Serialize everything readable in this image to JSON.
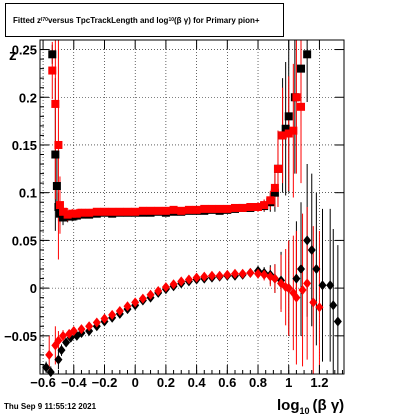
{
  "chart_data": {
    "type": "scatter",
    "title_parts": {
      "a": "Fitted  z",
      "a_sub": "I70",
      "b": " versus TpcTrackLength and log",
      "b_sub": "10",
      "c": "(β  γ) for Primary pion+"
    },
    "ylabel": "z",
    "xlabel_parts": {
      "base": "log",
      "sub": "10",
      "rest": "(β γ)"
    },
    "xlim": [
      -0.62,
      1.36
    ],
    "ylim": [
      -0.09,
      0.26
    ],
    "x_ticks": [
      -0.6,
      -0.4,
      -0.2,
      0,
      0.2,
      0.4,
      0.6,
      0.8,
      1,
      1.2
    ],
    "x_tick_labels": [
      "−0.6",
      "−0.4",
      "−0.2",
      "0",
      "0.2",
      "0.4",
      "0.6",
      "0.8",
      "1",
      "1.2"
    ],
    "y_ticks": [
      -0.05,
      0,
      0.05,
      0.1,
      0.15,
      0.2,
      0.25
    ],
    "y_tick_labels": [
      "−0.05",
      "0",
      "0.05",
      "0.1",
      "0.15",
      "0.2",
      "0.25"
    ],
    "grid": true,
    "timestamp": "Thu Sep  9 11:55:12 2021",
    "series": [
      {
        "marker": "square",
        "color": "#000000",
        "points": [
          [
            -0.54,
            0.245,
            0.01
          ],
          [
            -0.52,
            0.14,
            0.08
          ],
          [
            -0.51,
            0.107,
            0.03
          ],
          [
            -0.5,
            0.085,
            0.015
          ],
          [
            -0.49,
            0.078,
            0.01
          ],
          [
            -0.47,
            0.074,
            0.008
          ],
          [
            -0.44,
            0.075,
            0.006
          ],
          [
            -0.41,
            0.075,
            0.005
          ],
          [
            -0.38,
            0.076,
            0.005
          ],
          [
            -0.35,
            0.077,
            0.004
          ],
          [
            -0.3,
            0.077,
            0.004
          ],
          [
            -0.25,
            0.078,
            0.003
          ],
          [
            -0.2,
            0.079,
            0.003
          ],
          [
            -0.15,
            0.078,
            0.003
          ],
          [
            -0.1,
            0.079,
            0.003
          ],
          [
            -0.05,
            0.079,
            0.003
          ],
          [
            0.0,
            0.079,
            0.003
          ],
          [
            0.05,
            0.079,
            0.003
          ],
          [
            0.1,
            0.079,
            0.003
          ],
          [
            0.15,
            0.08,
            0.003
          ],
          [
            0.2,
            0.079,
            0.003
          ],
          [
            0.25,
            0.08,
            0.003
          ],
          [
            0.3,
            0.08,
            0.003
          ],
          [
            0.35,
            0.081,
            0.003
          ],
          [
            0.4,
            0.081,
            0.003
          ],
          [
            0.45,
            0.081,
            0.003
          ],
          [
            0.5,
            0.082,
            0.003
          ],
          [
            0.55,
            0.081,
            0.003
          ],
          [
            0.6,
            0.082,
            0.003
          ],
          [
            0.65,
            0.083,
            0.003
          ],
          [
            0.7,
            0.084,
            0.004
          ],
          [
            0.75,
            0.084,
            0.004
          ],
          [
            0.8,
            0.085,
            0.005
          ],
          [
            0.84,
            0.086,
            0.006
          ],
          [
            0.88,
            0.09,
            0.01
          ],
          [
            0.91,
            0.1,
            0.02
          ],
          [
            0.93,
            0.125,
            0.04
          ],
          [
            0.96,
            0.16,
            0.06
          ],
          [
            0.98,
            0.167,
            0.07
          ],
          [
            1.0,
            0.18,
            0.08
          ],
          [
            1.04,
            0.2,
            0.08
          ],
          [
            1.08,
            0.23,
            0.06
          ],
          [
            1.12,
            0.245,
            0.05
          ]
        ]
      },
      {
        "marker": "square",
        "color": "#ff0000",
        "points": [
          [
            -0.54,
            0.228,
            0.03
          ],
          [
            -0.52,
            0.193,
            0.1
          ],
          [
            -0.5,
            0.15,
            0.12
          ],
          [
            -0.49,
            0.087,
            0.03
          ],
          [
            -0.47,
            0.08,
            0.01
          ],
          [
            -0.44,
            0.077,
            0.007
          ],
          [
            -0.41,
            0.078,
            0.005
          ],
          [
            -0.38,
            0.078,
            0.005
          ],
          [
            -0.35,
            0.079,
            0.004
          ],
          [
            -0.3,
            0.079,
            0.004
          ],
          [
            -0.25,
            0.08,
            0.003
          ],
          [
            -0.2,
            0.08,
            0.003
          ],
          [
            -0.15,
            0.08,
            0.003
          ],
          [
            -0.1,
            0.08,
            0.003
          ],
          [
            -0.05,
            0.08,
            0.003
          ],
          [
            0.0,
            0.08,
            0.003
          ],
          [
            0.05,
            0.081,
            0.003
          ],
          [
            0.1,
            0.081,
            0.003
          ],
          [
            0.15,
            0.081,
            0.003
          ],
          [
            0.2,
            0.081,
            0.003
          ],
          [
            0.25,
            0.082,
            0.003
          ],
          [
            0.3,
            0.081,
            0.003
          ],
          [
            0.35,
            0.082,
            0.003
          ],
          [
            0.4,
            0.082,
            0.003
          ],
          [
            0.45,
            0.083,
            0.003
          ],
          [
            0.5,
            0.083,
            0.003
          ],
          [
            0.55,
            0.083,
            0.003
          ],
          [
            0.6,
            0.083,
            0.003
          ],
          [
            0.65,
            0.084,
            0.004
          ],
          [
            0.7,
            0.084,
            0.004
          ],
          [
            0.75,
            0.085,
            0.004
          ],
          [
            0.8,
            0.085,
            0.005
          ],
          [
            0.84,
            0.087,
            0.006
          ],
          [
            0.88,
            0.092,
            0.01
          ],
          [
            0.91,
            0.105,
            0.02
          ],
          [
            0.93,
            0.125,
            0.04
          ],
          [
            0.96,
            0.16,
            0.05
          ],
          [
            1.0,
            0.162,
            0.06
          ],
          [
            1.03,
            0.165,
            0.07
          ],
          [
            1.05,
            0.2,
            0.08
          ],
          [
            1.08,
            0.19,
            0.08
          ]
        ]
      },
      {
        "marker": "diamond",
        "color": "#000000",
        "points": [
          [
            -0.58,
            -0.083,
            0.006
          ],
          [
            -0.55,
            -0.088,
            0.006
          ],
          [
            -0.5,
            -0.075,
            0.01
          ],
          [
            -0.48,
            -0.065,
            0.006
          ],
          [
            -0.45,
            -0.057,
            0.004
          ],
          [
            -0.42,
            -0.052,
            0.004
          ],
          [
            -0.38,
            -0.05,
            0.003
          ],
          [
            -0.35,
            -0.047,
            0.003
          ],
          [
            -0.3,
            -0.045,
            0.003
          ],
          [
            -0.25,
            -0.04,
            0.003
          ],
          [
            -0.2,
            -0.035,
            0.003
          ],
          [
            -0.15,
            -0.031,
            0.003
          ],
          [
            -0.1,
            -0.027,
            0.003
          ],
          [
            -0.05,
            -0.022,
            0.003
          ],
          [
            0.0,
            -0.018,
            0.003
          ],
          [
            0.05,
            -0.013,
            0.003
          ],
          [
            0.1,
            -0.01,
            0.003
          ],
          [
            0.15,
            -0.005,
            0.003
          ],
          [
            0.2,
            -0.001,
            0.003
          ],
          [
            0.25,
            0.002,
            0.003
          ],
          [
            0.3,
            0.005,
            0.003
          ],
          [
            0.35,
            0.007,
            0.003
          ],
          [
            0.4,
            0.009,
            0.003
          ],
          [
            0.45,
            0.01,
            0.003
          ],
          [
            0.5,
            0.011,
            0.003
          ],
          [
            0.55,
            0.012,
            0.003
          ],
          [
            0.6,
            0.013,
            0.003
          ],
          [
            0.65,
            0.013,
            0.003
          ],
          [
            0.7,
            0.014,
            0.004
          ],
          [
            0.75,
            0.016,
            0.004
          ],
          [
            0.8,
            0.018,
            0.005
          ],
          [
            0.84,
            0.016,
            0.006
          ],
          [
            0.88,
            0.014,
            0.01
          ],
          [
            0.91,
            0.01,
            0.015
          ],
          [
            0.95,
            0.008,
            0.03
          ],
          [
            1.0,
            0.0,
            0.05
          ],
          [
            1.05,
            0.01,
            0.06
          ],
          [
            1.08,
            0.02,
            0.07
          ],
          [
            1.12,
            0.05,
            0.08
          ],
          [
            1.15,
            0.04,
            0.08
          ],
          [
            1.18,
            0.02,
            0.08
          ],
          [
            1.22,
            0.003,
            0.08
          ],
          [
            1.27,
            0.003,
            0.08
          ],
          [
            1.29,
            -0.018,
            0.08
          ],
          [
            1.32,
            -0.035,
            0.08
          ]
        ]
      },
      {
        "marker": "diamond",
        "color": "#ff0000",
        "points": [
          [
            -0.56,
            -0.07,
            0.02
          ],
          [
            -0.52,
            -0.06,
            0.02
          ],
          [
            -0.5,
            -0.055,
            0.01
          ],
          [
            -0.47,
            -0.05,
            0.006
          ],
          [
            -0.43,
            -0.048,
            0.004
          ],
          [
            -0.4,
            -0.045,
            0.004
          ],
          [
            -0.35,
            -0.043,
            0.003
          ],
          [
            -0.3,
            -0.04,
            0.003
          ],
          [
            -0.25,
            -0.036,
            0.003
          ],
          [
            -0.2,
            -0.032,
            0.003
          ],
          [
            -0.15,
            -0.028,
            0.003
          ],
          [
            -0.1,
            -0.024,
            0.003
          ],
          [
            -0.05,
            -0.019,
            0.003
          ],
          [
            0.0,
            -0.015,
            0.003
          ],
          [
            0.05,
            -0.011,
            0.003
          ],
          [
            0.1,
            -0.007,
            0.003
          ],
          [
            0.15,
            -0.003,
            0.003
          ],
          [
            0.2,
            0.001,
            0.003
          ],
          [
            0.25,
            0.004,
            0.003
          ],
          [
            0.3,
            0.007,
            0.003
          ],
          [
            0.35,
            0.009,
            0.003
          ],
          [
            0.4,
            0.011,
            0.003
          ],
          [
            0.45,
            0.012,
            0.003
          ],
          [
            0.5,
            0.013,
            0.003
          ],
          [
            0.55,
            0.013,
            0.003
          ],
          [
            0.6,
            0.014,
            0.003
          ],
          [
            0.65,
            0.015,
            0.004
          ],
          [
            0.7,
            0.015,
            0.004
          ],
          [
            0.75,
            0.016,
            0.004
          ],
          [
            0.8,
            0.015,
            0.005
          ],
          [
            0.84,
            0.014,
            0.006
          ],
          [
            0.88,
            0.012,
            0.01
          ],
          [
            0.91,
            0.01,
            0.015
          ],
          [
            0.95,
            0.005,
            0.03
          ],
          [
            0.98,
            0.001,
            0.04
          ],
          [
            1.0,
            0.0,
            0.05
          ],
          [
            1.03,
            -0.005,
            0.06
          ],
          [
            1.05,
            -0.01,
            0.07
          ],
          [
            1.09,
            -0.002,
            0.08
          ],
          [
            1.12,
            0.005,
            0.08
          ],
          [
            1.16,
            -0.015,
            0.08
          ],
          [
            1.2,
            -0.02,
            0.08
          ]
        ]
      }
    ]
  }
}
